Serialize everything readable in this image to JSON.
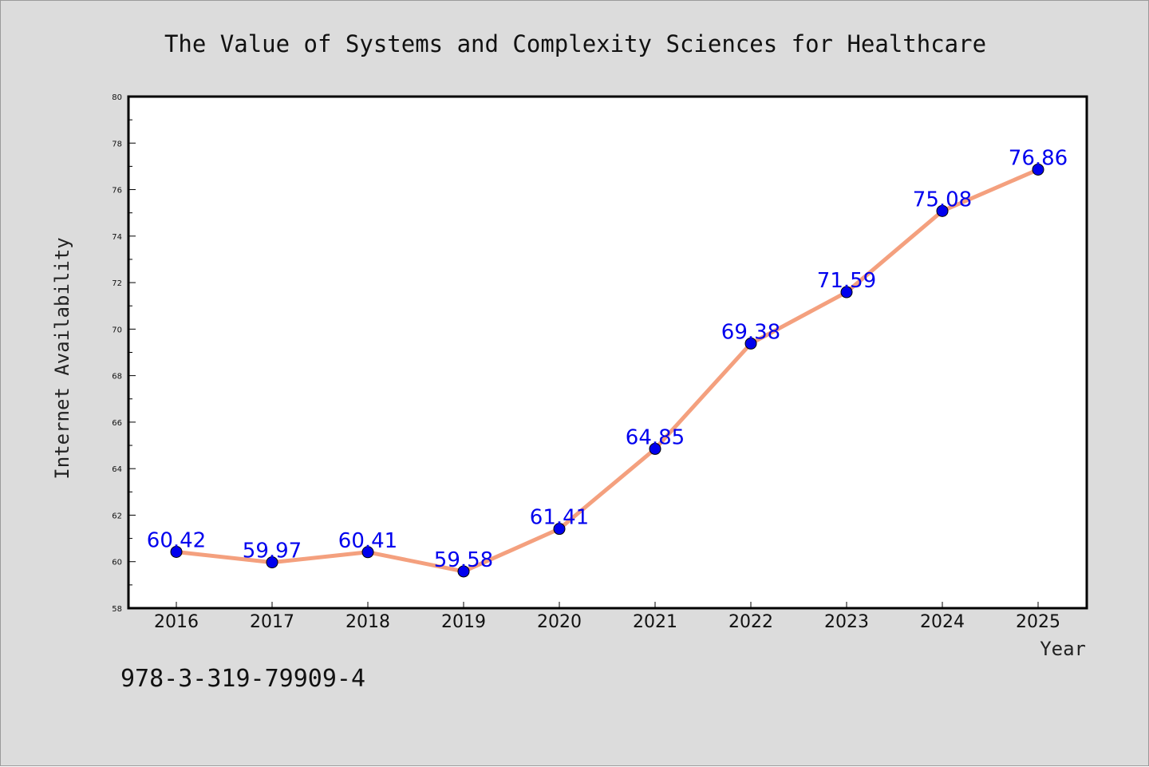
{
  "colors": {
    "background": "#dcdcdc",
    "plot_background": "#ffffff",
    "line": "#f4a07e",
    "marker": "#0000ee",
    "data_label": "#0000ee"
  },
  "footnote": "978-3-319-79909-4",
  "chart_data": {
    "type": "line",
    "title": "The Value of Systems and Complexity Sciences for Healthcare",
    "xlabel": "Year",
    "ylabel": "Internet Availability",
    "categories": [
      "2016",
      "2017",
      "2018",
      "2019",
      "2020",
      "2021",
      "2022",
      "2023",
      "2024",
      "2025"
    ],
    "series": [
      {
        "values": [
          60.42,
          59.97,
          60.41,
          59.58,
          61.41,
          64.85,
          69.38,
          71.59,
          75.08,
          76.86
        ]
      }
    ],
    "data_labels": [
      "60.42",
      "59.97",
      "60.41",
      "59.58",
      "61.41",
      "64.85",
      "69.38",
      "71.59",
      "75.08",
      "76.86"
    ],
    "ylim": [
      58,
      80
    ],
    "yticks": [
      58,
      60,
      62,
      64,
      66,
      68,
      70,
      72,
      74,
      76,
      78,
      80
    ],
    "grid": false,
    "legend": "none"
  }
}
